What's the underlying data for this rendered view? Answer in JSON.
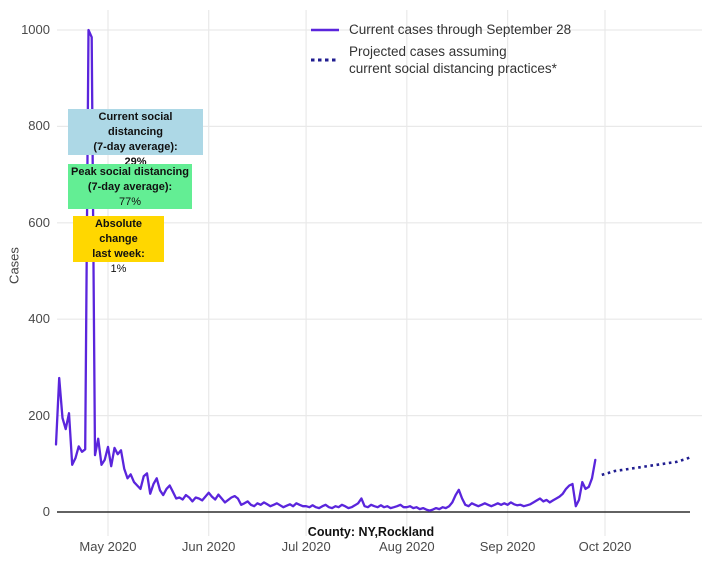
{
  "legend": {
    "current_label": "Current cases through September 28",
    "projected_line1": "Projected cases assuming",
    "projected_line2": "current social distancing practices*"
  },
  "annotations": {
    "current": {
      "line1": "Current social distancing",
      "line2": "(7-day average):",
      "value": "29%",
      "bg": "#add8e6"
    },
    "peak": {
      "line1": "Peak social distancing",
      "line2": "(7-day average):",
      "value": "77%",
      "bg": "#63ee94"
    },
    "change": {
      "line1": "Absolute change",
      "line2": "last week:",
      "value": "1%",
      "bg": "#ffd700"
    }
  },
  "chart_data": {
    "type": "line",
    "title": "",
    "xlabel": "County: NY,Rockland",
    "ylabel": "Cases",
    "ylim": [
      0,
      1000
    ],
    "grid": true,
    "legend_position": "top-center",
    "x_start_date": "2020-04-15",
    "colors": {
      "grid": "#e9e9e9",
      "axis_line": "#2f2f2f",
      "tick_text": "#4a4a4a"
    },
    "y_ticks": [
      0,
      200,
      400,
      600,
      800,
      1000
    ],
    "x_ticks": [
      {
        "label": "May 2020",
        "day": 16
      },
      {
        "label": "Jun 2020",
        "day": 47
      },
      {
        "label": "Jul 2020",
        "day": 77
      },
      {
        "label": "Aug 2020",
        "day": 108
      },
      {
        "label": "Sep 2020",
        "day": 139
      },
      {
        "label": "Oct 2020",
        "day": 169
      }
    ],
    "series": [
      {
        "name": "Current cases through September 28",
        "style": "solid",
        "color": "#5a25dc",
        "start_day": 0,
        "values": [
          140,
          278,
          195,
          172,
          205,
          98,
          112,
          136,
          125,
          130,
          1000,
          985,
          118,
          152,
          98,
          108,
          135,
          95,
          133,
          120,
          128,
          90,
          70,
          78,
          62,
          55,
          48,
          74,
          80,
          38,
          58,
          70,
          45,
          35,
          48,
          55,
          42,
          28,
          30,
          26,
          35,
          30,
          22,
          30,
          28,
          24,
          32,
          40,
          32,
          26,
          36,
          28,
          20,
          25,
          30,
          33,
          28,
          15,
          18,
          22,
          15,
          12,
          18,
          15,
          20,
          16,
          12,
          15,
          18,
          14,
          10,
          13,
          16,
          12,
          18,
          15,
          12,
          12,
          10,
          14,
          10,
          8,
          12,
          15,
          10,
          8,
          12,
          10,
          15,
          12,
          8,
          10,
          14,
          18,
          28,
          12,
          10,
          15,
          12,
          10,
          14,
          10,
          12,
          8,
          10,
          12,
          15,
          10,
          10,
          12,
          8,
          10,
          6,
          8,
          5,
          3,
          5,
          8,
          6,
          10,
          8,
          12,
          20,
          35,
          46,
          28,
          15,
          12,
          18,
          15,
          12,
          15,
          18,
          15,
          12,
          15,
          18,
          15,
          18,
          15,
          20,
          16,
          14,
          15,
          12,
          14,
          16,
          20,
          24,
          28,
          22,
          25,
          20,
          24,
          28,
          32,
          38,
          48,
          55,
          58,
          12,
          25,
          62,
          48,
          52,
          70,
          108
        ]
      },
      {
        "name": "Projected cases assuming current social distancing practices*",
        "style": "dotted",
        "color": "#201d90",
        "start_day": 168,
        "values": [
          77,
          79,
          81,
          83,
          85,
          86,
          87,
          88,
          89,
          90,
          91,
          92,
          93,
          94,
          95,
          96,
          97,
          98,
          99,
          100,
          101,
          102,
          103,
          104,
          106,
          108,
          110,
          113
        ]
      }
    ]
  }
}
